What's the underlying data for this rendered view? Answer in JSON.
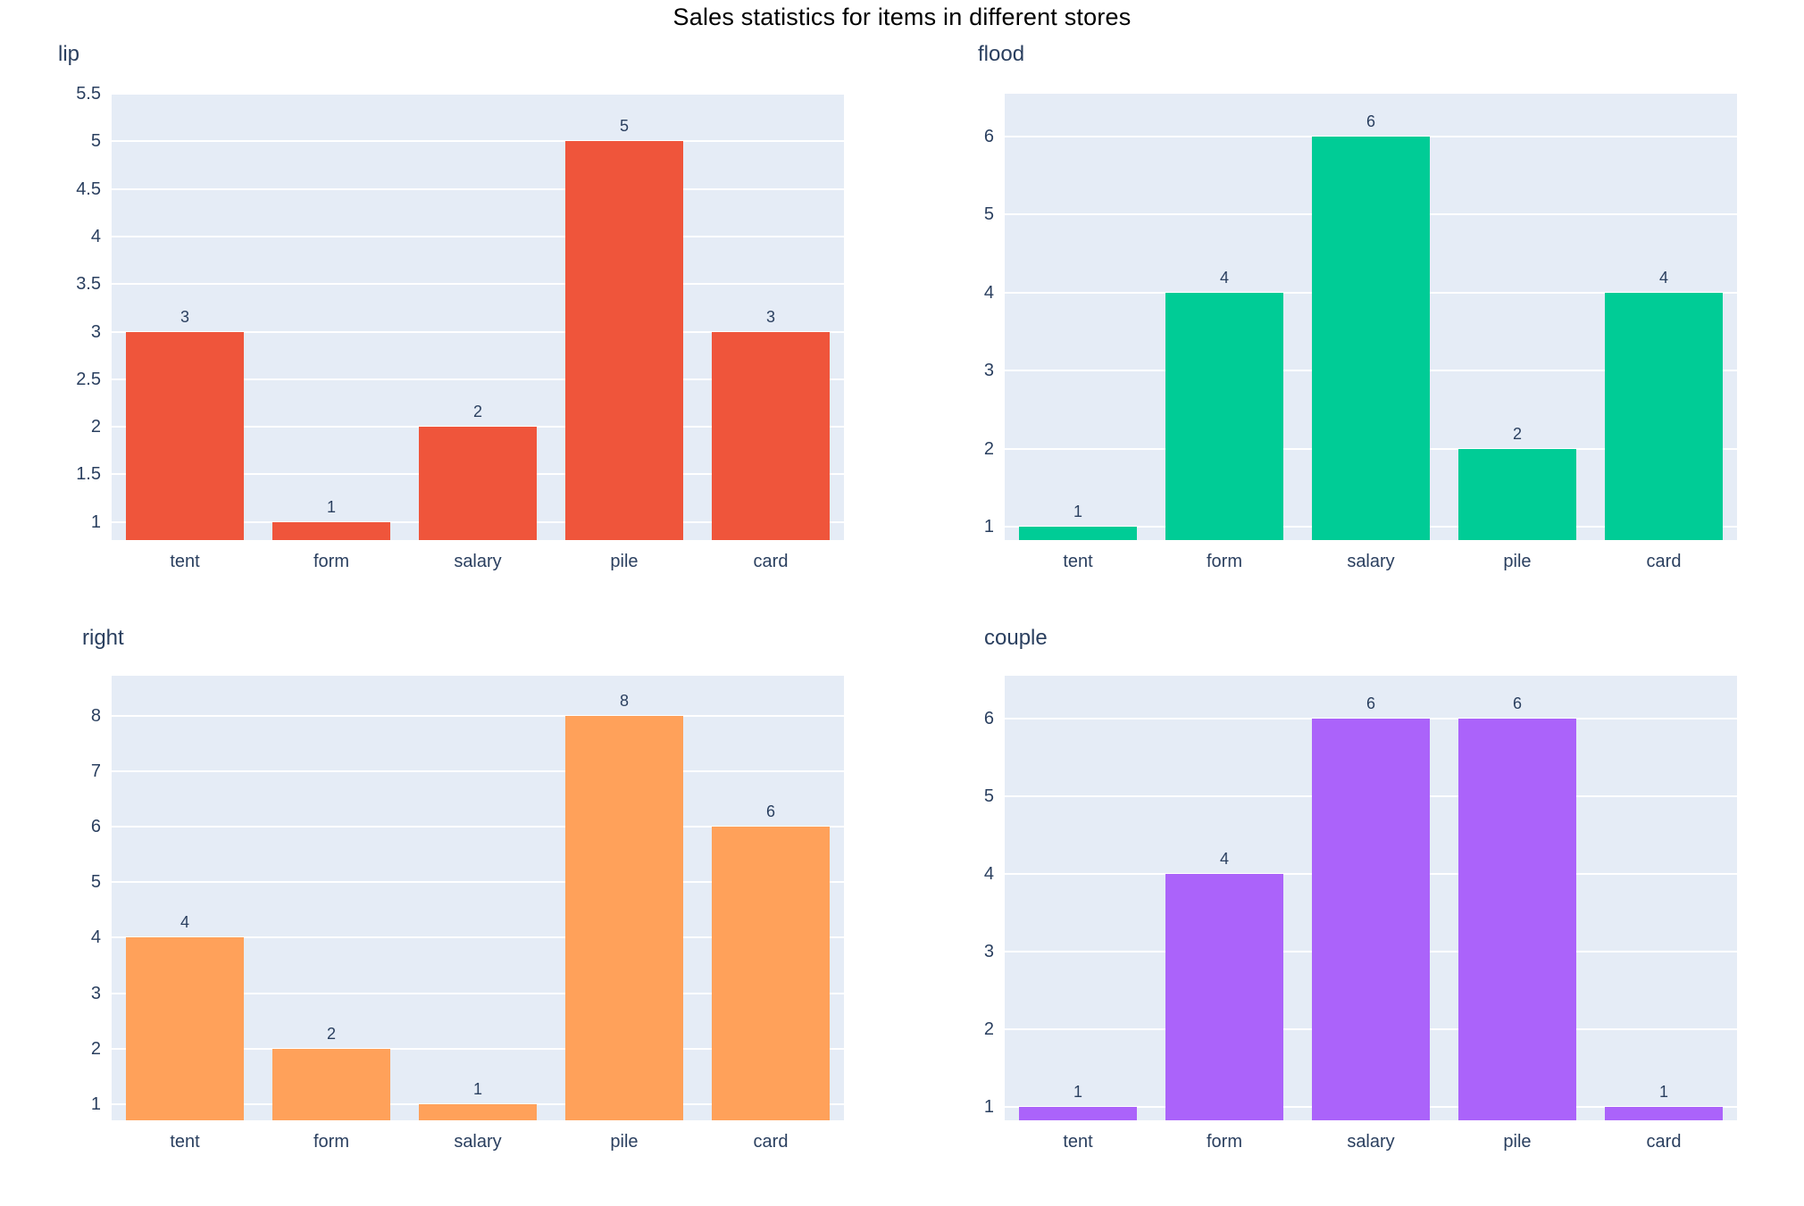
{
  "page": {
    "title": "Sales statistics for items in different stores"
  },
  "colors": {
    "plot_background": "#e5ecf6",
    "grid": "#ffffff",
    "axis_text": "#2a3f5f",
    "title_text": "#000000"
  },
  "chart_data": [
    {
      "type": "bar",
      "title": "lip",
      "bar_color": "#EF553B",
      "categories": [
        "tent",
        "form",
        "salary",
        "pile",
        "card"
      ],
      "values": [
        3,
        1,
        2,
        5,
        3
      ],
      "yticks": [
        1,
        1.5,
        2,
        2.5,
        3,
        3.5,
        4,
        4.5,
        5,
        5.5
      ],
      "ylim": [
        0.81,
        5.5
      ],
      "xlabel": "",
      "ylabel": "",
      "grid": true,
      "legend": "none"
    },
    {
      "type": "bar",
      "title": "flood",
      "bar_color": "#00CC96",
      "categories": [
        "tent",
        "form",
        "salary",
        "pile",
        "card"
      ],
      "values": [
        1,
        4,
        6,
        2,
        4
      ],
      "yticks": [
        1,
        2,
        3,
        4,
        5,
        6
      ],
      "ylim": [
        0.83,
        6.55
      ],
      "xlabel": "",
      "ylabel": "",
      "grid": true,
      "legend": "none"
    },
    {
      "type": "bar",
      "title": "right",
      "bar_color": "#FFA15A",
      "categories": [
        "tent",
        "form",
        "salary",
        "pile",
        "card"
      ],
      "values": [
        4,
        2,
        1,
        8,
        6
      ],
      "yticks": [
        1,
        2,
        3,
        4,
        5,
        6,
        7,
        8
      ],
      "ylim": [
        0.71,
        8.72
      ],
      "xlabel": "",
      "ylabel": "",
      "grid": true,
      "legend": "none"
    },
    {
      "type": "bar",
      "title": "couple",
      "bar_color": "#AB63FA",
      "categories": [
        "tent",
        "form",
        "salary",
        "pile",
        "card"
      ],
      "values": [
        1,
        4,
        6,
        6,
        1
      ],
      "yticks": [
        1,
        2,
        3,
        4,
        5,
        6
      ],
      "ylim": [
        0.83,
        6.55
      ],
      "xlabel": "",
      "ylabel": "",
      "grid": true,
      "legend": "none"
    }
  ]
}
